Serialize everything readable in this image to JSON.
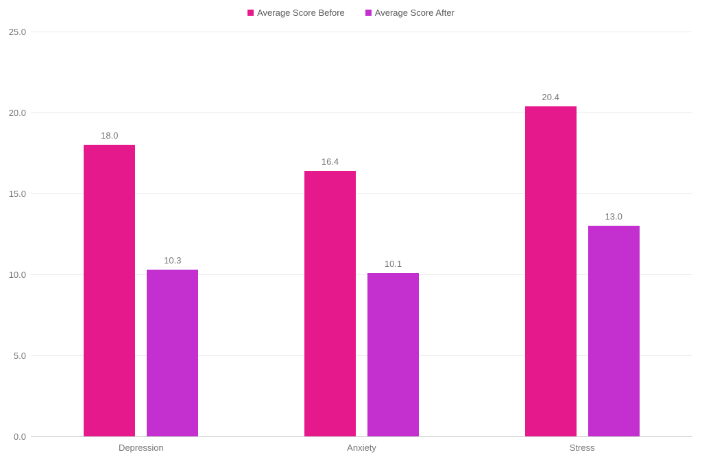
{
  "chart_data": {
    "type": "bar",
    "title": "",
    "xlabel": "",
    "ylabel": "",
    "categories": [
      "Depression",
      "Anxiety",
      "Stress"
    ],
    "series": [
      {
        "name": "Average Score Before",
        "color": "#E6198C",
        "values": [
          18.0,
          16.4,
          20.4
        ],
        "labels": [
          "18.0",
          "16.4",
          "20.4"
        ]
      },
      {
        "name": "Average Score After",
        "color": "#C430CF",
        "values": [
          10.3,
          10.1,
          13.0
        ],
        "labels": [
          "10.3",
          "10.1",
          "13.0"
        ]
      }
    ],
    "ylim": [
      0,
      25
    ],
    "yticks": [
      {
        "value": 0,
        "label": "0.0"
      },
      {
        "value": 5,
        "label": "5.0"
      },
      {
        "value": 10,
        "label": "10.0"
      },
      {
        "value": 15,
        "label": "15.0"
      },
      {
        "value": 20,
        "label": "20.0"
      },
      {
        "value": 25,
        "label": "25.0"
      }
    ],
    "grid": true,
    "legend_position": "top-center"
  },
  "colors": {
    "background": "#FFFFFF",
    "gridline": "#E8E8E8",
    "baseline": "#CFCFCF",
    "tick_text": "#757575",
    "legend_text": "#595959",
    "series_before": "#E6198C",
    "series_after": "#C430CF"
  }
}
